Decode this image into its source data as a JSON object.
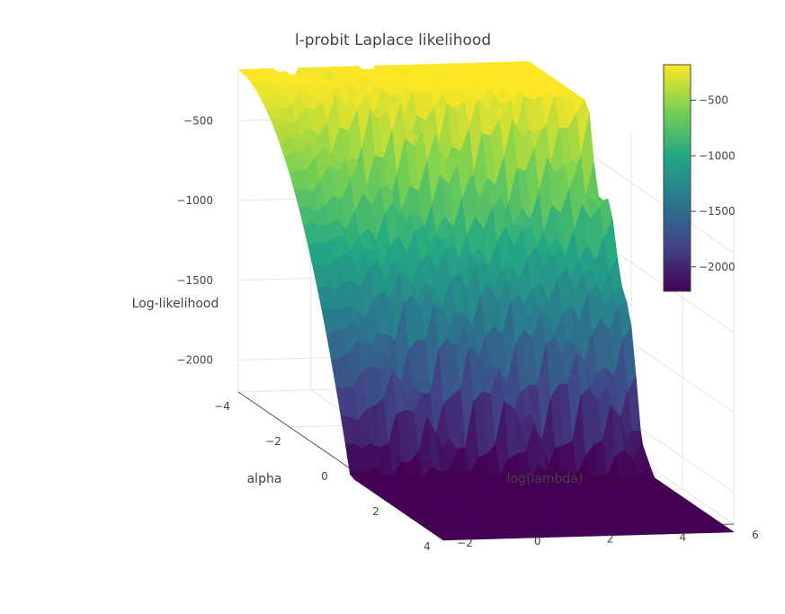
{
  "chart_data": {
    "type": "surface",
    "title": "l-probit Laplace likelihood",
    "axes": {
      "x": {
        "label": "alpha",
        "range": [
          -4,
          4
        ],
        "ticks": [
          "−4",
          "−2",
          "0",
          "2",
          "4"
        ]
      },
      "y": {
        "label": "log(lambda)",
        "range": [
          -2,
          6
        ],
        "ticks": [
          "−2",
          "0",
          "2",
          "4",
          "6"
        ]
      },
      "z": {
        "label": "Log-likelihood",
        "range": [
          -2200,
          -200
        ],
        "ticks": [
          "−500",
          "−1000",
          "−1500",
          "−2000"
        ]
      }
    },
    "colorscale": "viridis",
    "colorbar": {
      "range": [
        -2220,
        -180
      ],
      "ticks": [
        {
          "value": -500,
          "label": "−500"
        },
        {
          "value": -1000,
          "label": "−1000"
        },
        {
          "value": -1500,
          "label": "−1500"
        },
        {
          "value": -2000,
          "label": "−2000"
        }
      ]
    },
    "grid": true,
    "legend": "none",
    "colors": [
      "#440154",
      "#3b528b",
      "#21918c",
      "#5ec962",
      "#fde725"
    ]
  }
}
